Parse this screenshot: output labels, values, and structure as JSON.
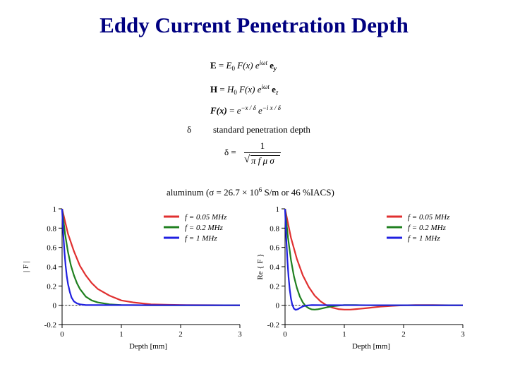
{
  "title": "Eddy Current Penetration Depth",
  "equations": {
    "e_field": {
      "lhs": "E",
      "eq": "=",
      "amp": "E",
      "amp_sub": "0",
      "func": "F(x)",
      "exp_base": "e",
      "exp": "iωt",
      "vec": "e",
      "vec_sub": "y"
    },
    "h_field": {
      "lhs": "H",
      "eq": "=",
      "amp": "H",
      "amp_sub": "0",
      "func": "F(x)",
      "exp_base": "e",
      "exp": "iωt",
      "vec": "e",
      "vec_sub": "z"
    },
    "f_func": {
      "lhs": "F(x)",
      "eq": "=",
      "term1_base": "e",
      "term1_exp": "−x / δ",
      "term2_base": "e",
      "term2_exp": "−i x / δ"
    },
    "delta_symbol": "δ",
    "delta_label": "standard penetration depth",
    "delta_formula": {
      "lhs": "δ =",
      "numerator": "1",
      "root": "√",
      "denominator": "π f μ σ"
    }
  },
  "material_note": {
    "prefix": "aluminum (σ = 26.7 × 10",
    "exponent": "6",
    "suffix": " S/m or 46 %IACS)"
  },
  "chart_data": [
    {
      "type": "line",
      "title": "",
      "xlabel": "Depth [mm]",
      "ylabel": "| F |",
      "xlim": [
        0,
        3
      ],
      "ylim": [
        -0.2,
        1
      ],
      "xticks": [
        "0",
        "1",
        "2",
        "3"
      ],
      "yticks": [
        "-0.2",
        "0",
        "0.2",
        "0.4",
        "0.6",
        "0.8",
        "1"
      ],
      "legend_position": "top-right",
      "reference_line": 0,
      "series": [
        {
          "name": "f = 0.05 MHz",
          "color": "#e03030",
          "x": [
            0,
            0.1,
            0.2,
            0.3,
            0.4,
            0.5,
            0.6,
            0.8,
            1.0,
            1.2,
            1.5,
            1.8,
            2.1,
            2.5,
            3.0
          ],
          "y": [
            1,
            0.74,
            0.56,
            0.41,
            0.31,
            0.23,
            0.17,
            0.1,
            0.05,
            0.03,
            0.01,
            0.005,
            0.002,
            0.001,
            0
          ]
        },
        {
          "name": "f = 0.2 MHz",
          "color": "#208020",
          "x": [
            0,
            0.05,
            0.1,
            0.15,
            0.2,
            0.25,
            0.3,
            0.4,
            0.5,
            0.6,
            0.8,
            1.0,
            1.5,
            3.0
          ],
          "y": [
            1,
            0.74,
            0.55,
            0.41,
            0.31,
            0.23,
            0.17,
            0.09,
            0.05,
            0.03,
            0.01,
            0.003,
            0,
            0
          ]
        },
        {
          "name": "f = 1 MHz",
          "color": "#2020e0",
          "x": [
            0,
            0.02,
            0.04,
            0.06,
            0.08,
            0.1,
            0.13,
            0.16,
            0.2,
            0.25,
            0.3,
            0.4,
            3.0
          ],
          "y": [
            1,
            0.74,
            0.55,
            0.41,
            0.3,
            0.22,
            0.14,
            0.08,
            0.04,
            0.02,
            0.01,
            0.002,
            0
          ]
        }
      ]
    },
    {
      "type": "line",
      "title": "",
      "xlabel": "Depth [mm]",
      "ylabel": "Re { F }",
      "xlim": [
        0,
        3
      ],
      "ylim": [
        -0.2,
        1
      ],
      "xticks": [
        "0",
        "1",
        "2",
        "3"
      ],
      "yticks": [
        "-0.2",
        "0",
        "0.2",
        "0.4",
        "0.6",
        "0.8",
        "1"
      ],
      "legend_position": "top-right",
      "reference_line": 0,
      "series": [
        {
          "name": "f = 0.05 MHz",
          "color": "#e03030",
          "x": [
            0,
            0.1,
            0.2,
            0.3,
            0.4,
            0.5,
            0.6,
            0.7,
            0.8,
            0.9,
            1.0,
            1.1,
            1.2,
            1.4,
            1.6,
            1.8,
            2.0,
            2.2,
            2.5,
            3.0
          ],
          "y": [
            1,
            0.7,
            0.48,
            0.31,
            0.19,
            0.1,
            0.04,
            0.0,
            -0.025,
            -0.04,
            -0.045,
            -0.045,
            -0.04,
            -0.028,
            -0.015,
            -0.006,
            0.0,
            0.003,
            0.002,
            0
          ]
        },
        {
          "name": "f = 0.2 MHz",
          "color": "#208020",
          "x": [
            0,
            0.05,
            0.1,
            0.15,
            0.2,
            0.25,
            0.3,
            0.35,
            0.4,
            0.45,
            0.5,
            0.55,
            0.6,
            0.7,
            0.8,
            0.9,
            1.0,
            1.2,
            1.5,
            3.0
          ],
          "y": [
            1,
            0.7,
            0.47,
            0.3,
            0.18,
            0.09,
            0.03,
            -0.01,
            -0.03,
            -0.043,
            -0.045,
            -0.042,
            -0.036,
            -0.022,
            -0.01,
            -0.003,
            0.002,
            0.002,
            0,
            0
          ]
        },
        {
          "name": "f = 1 MHz",
          "color": "#2020e0",
          "x": [
            0,
            0.02,
            0.04,
            0.06,
            0.08,
            0.1,
            0.12,
            0.15,
            0.18,
            0.22,
            0.26,
            0.3,
            0.35,
            0.45,
            0.6,
            3.0
          ],
          "y": [
            1,
            0.7,
            0.46,
            0.29,
            0.16,
            0.07,
            0.01,
            -0.035,
            -0.048,
            -0.04,
            -0.025,
            -0.012,
            -0.003,
            0.002,
            0.001,
            0
          ]
        }
      ]
    }
  ]
}
